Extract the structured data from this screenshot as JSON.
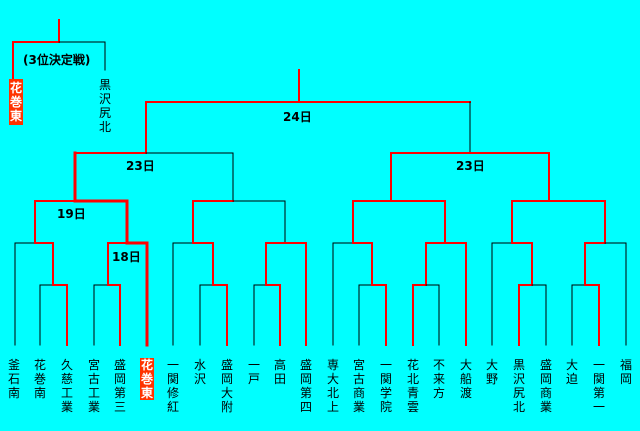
{
  "colors": {
    "background": "#00ffff",
    "winner_line": "#ff0000",
    "loser_line": "#000000",
    "highlight_bg": "#ff3300"
  },
  "third_place": {
    "label": "(3位決定戦)",
    "winner": "花巻東",
    "loser": "黒沢尻北"
  },
  "round_labels": {
    "final": "24日",
    "semi_left": "23日",
    "semi_right": "23日",
    "q_left": "19日",
    "r2_left": "18日"
  },
  "teams": [
    {
      "name": "釜石南",
      "highlight": false
    },
    {
      "name": "花巻南",
      "highlight": false
    },
    {
      "name": "久慈工業",
      "highlight": false
    },
    {
      "name": "宮古工業",
      "highlight": false
    },
    {
      "name": "盛岡第三",
      "highlight": false
    },
    {
      "name": "花巻東",
      "highlight": true
    },
    {
      "name": "一関修紅",
      "highlight": false
    },
    {
      "name": "水 沢",
      "highlight": false
    },
    {
      "name": "盛岡大附",
      "highlight": false
    },
    {
      "name": "一 戸",
      "highlight": false
    },
    {
      "name": "高 田",
      "highlight": false
    },
    {
      "name": "盛岡第四",
      "highlight": false
    },
    {
      "name": "専大北上",
      "highlight": false
    },
    {
      "name": "宮古商業",
      "highlight": false
    },
    {
      "name": "一関学院",
      "highlight": false
    },
    {
      "name": "花北青雲",
      "highlight": false
    },
    {
      "name": "不来方",
      "highlight": false
    },
    {
      "name": "大船渡",
      "highlight": false
    },
    {
      "name": "大 野",
      "highlight": false
    },
    {
      "name": "黒沢尻北",
      "highlight": false
    },
    {
      "name": "盛岡商業",
      "highlight": false
    },
    {
      "name": "大 迫",
      "highlight": false
    },
    {
      "name": "一関第一",
      "highlight": false
    },
    {
      "name": "福 岡",
      "highlight": false
    }
  ]
}
